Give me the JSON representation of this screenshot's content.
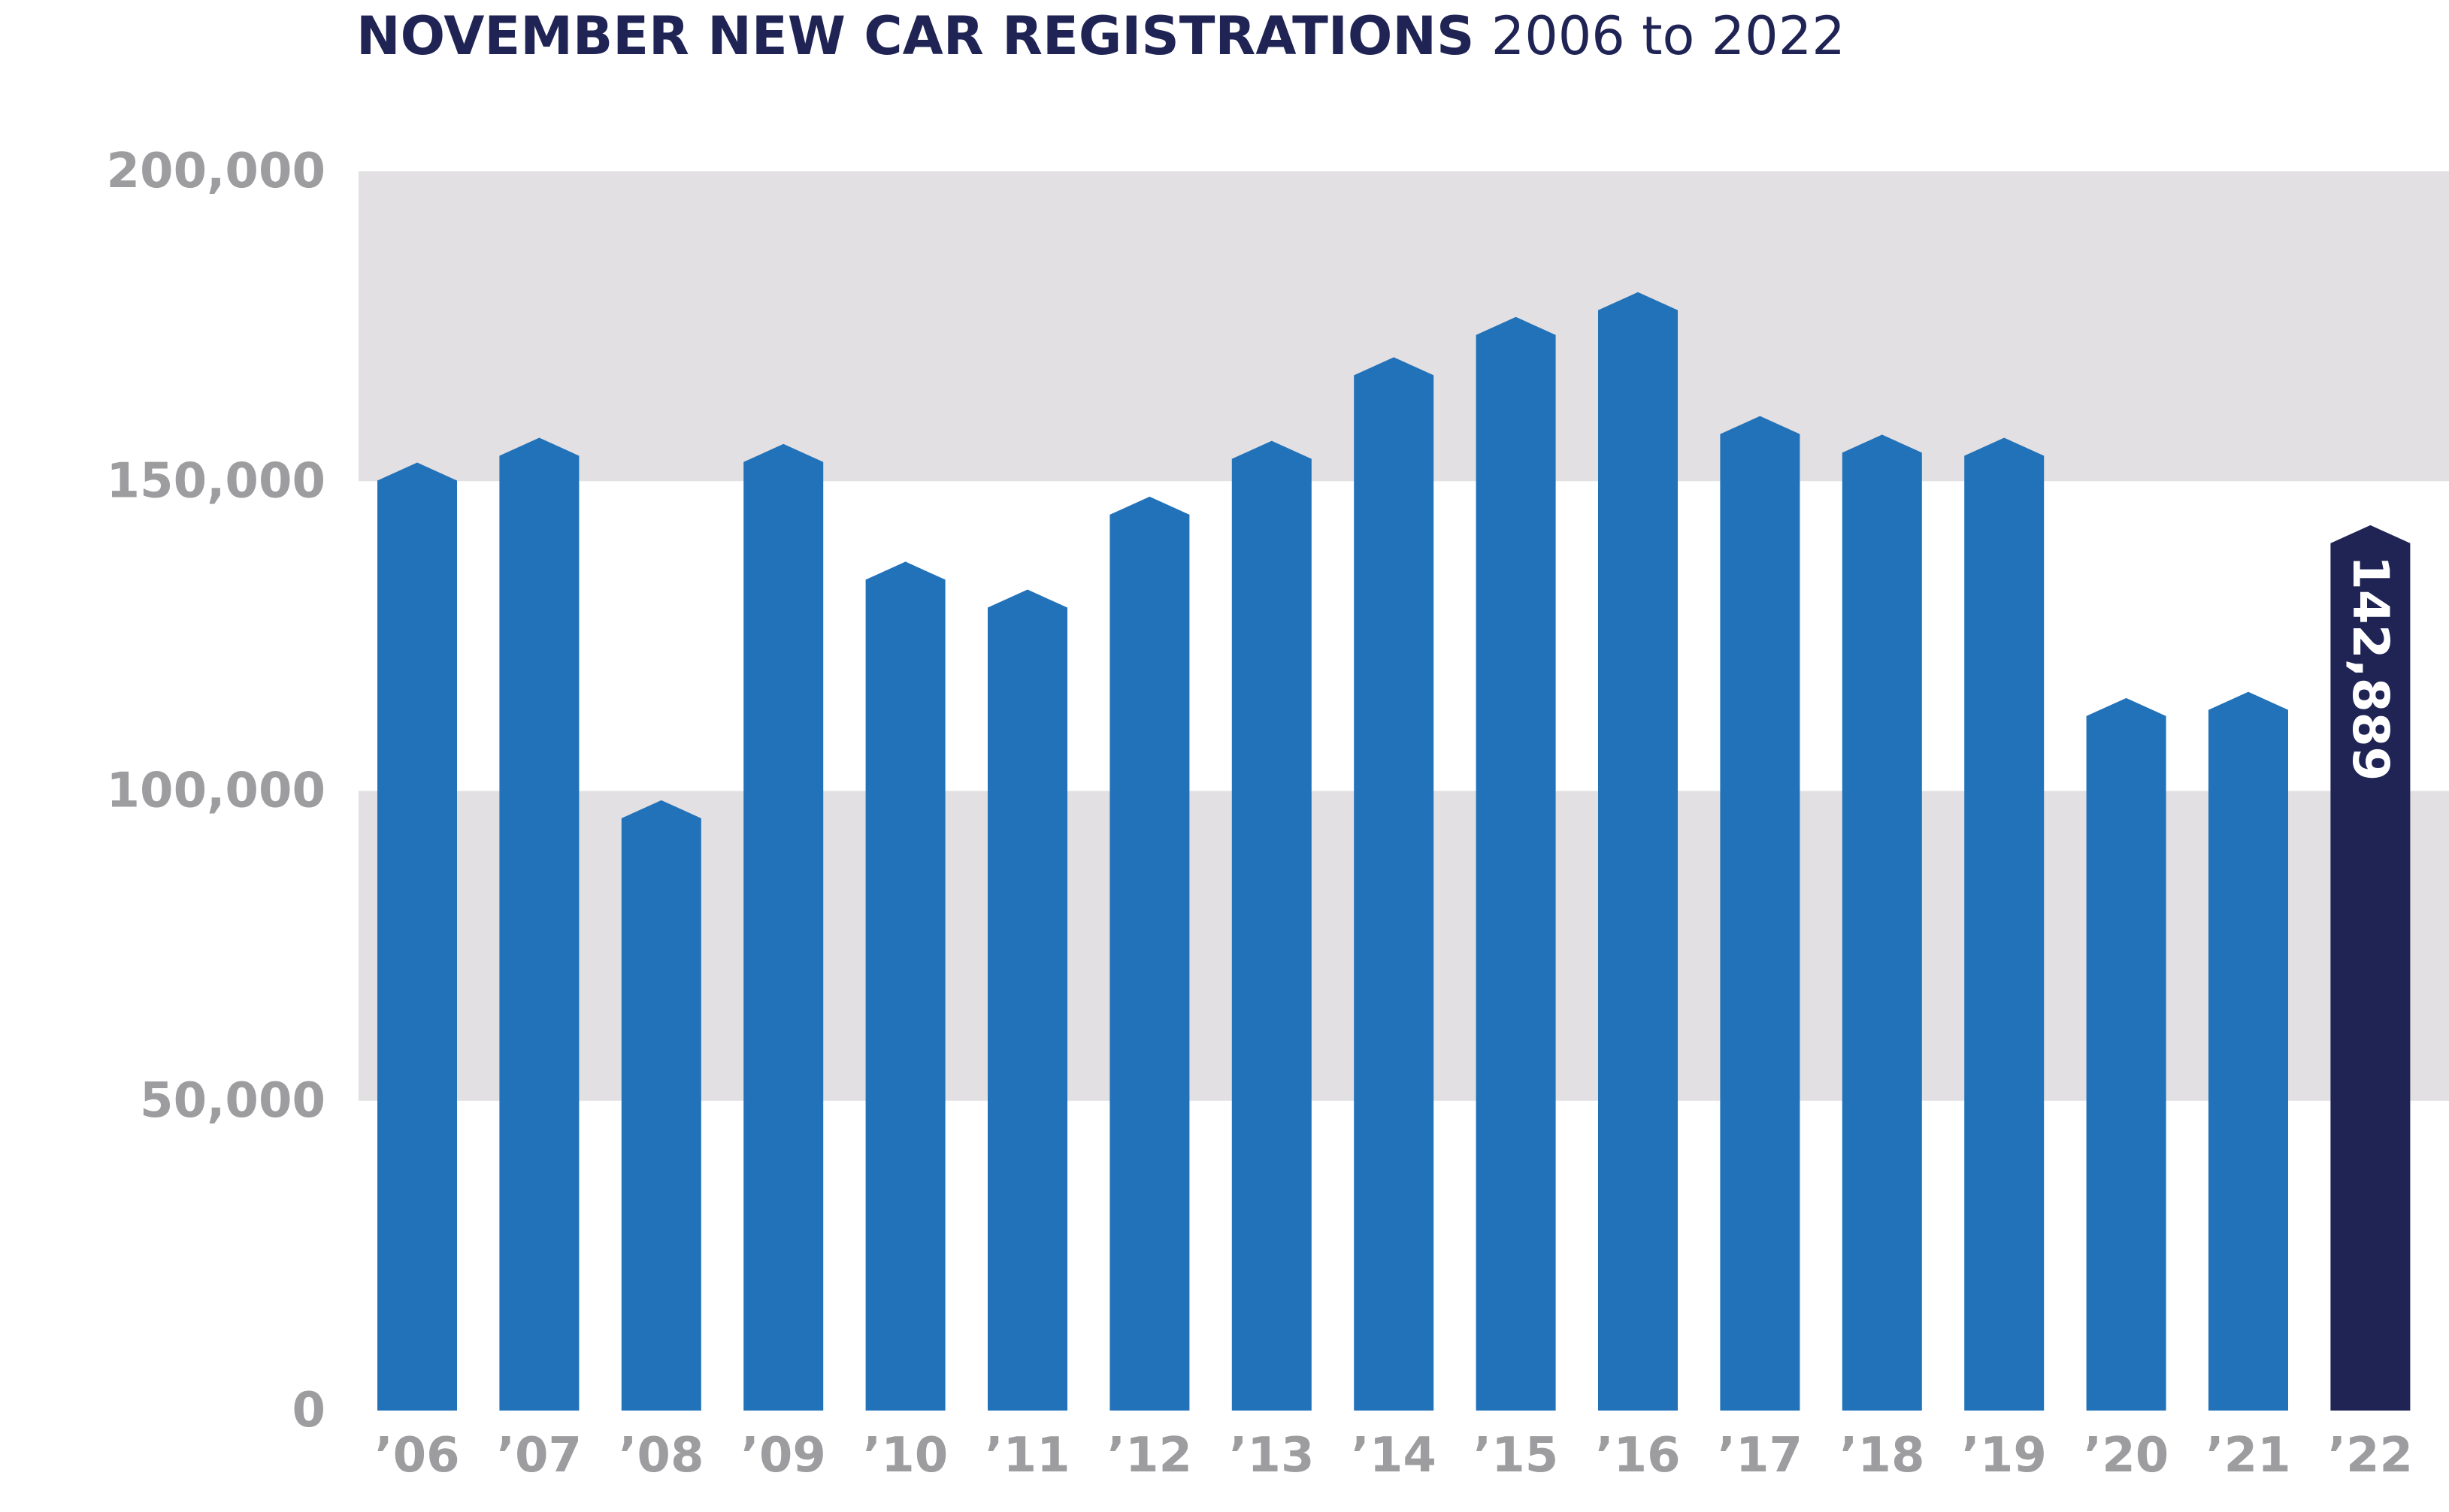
{
  "title": {
    "main": "NOVEMBER NEW CAR REGISTRATIONS",
    "range": "2006 to 2022"
  },
  "colors": {
    "bar": "#2272b9",
    "highlight_bar": "#1f2454",
    "band": "#e2e0e2",
    "tick_text": "#9d9da0",
    "title_text": "#1f2454"
  },
  "chart_data": {
    "type": "bar",
    "ylim": [
      0,
      200000
    ],
    "yticks": [
      {
        "value": 0,
        "label": "0"
      },
      {
        "value": 50000,
        "label": "50,000"
      },
      {
        "value": 100000,
        "label": "100,000"
      },
      {
        "value": 150000,
        "label": "150,000"
      },
      {
        "value": 200000,
        "label": "200,000"
      }
    ],
    "bands": [
      [
        50000,
        100000
      ],
      [
        150000,
        200000
      ]
    ],
    "grid": false,
    "categories": [
      "’06",
      "’07",
      "’08",
      "’09",
      "’10",
      "’11",
      "’12",
      "’13",
      "’14",
      "’15",
      "’16",
      "’17",
      "’18",
      "’19",
      "’20",
      "’21",
      "’22"
    ],
    "values": [
      153000,
      157000,
      98500,
      156000,
      137000,
      132500,
      147500,
      156500,
      170000,
      176500,
      180500,
      160500,
      157500,
      157000,
      115000,
      116000,
      142889
    ],
    "highlight_index": 16,
    "data_labels": [
      {
        "index": 16,
        "label": "142,889"
      }
    ]
  }
}
